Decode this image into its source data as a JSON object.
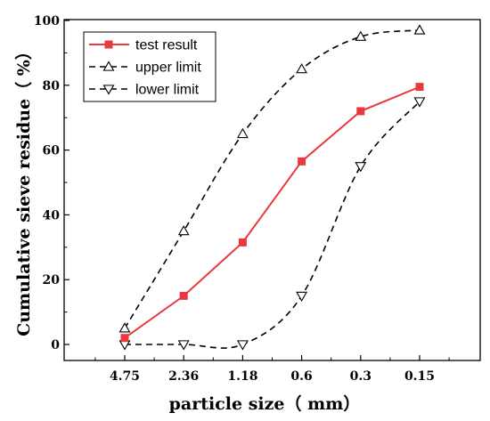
{
  "chart_data": {
    "type": "line",
    "xlabel": "particle size（ mm）",
    "ylabel": "Cumulative sieve residue（ %）",
    "categories": [
      "4.75",
      "2.36",
      "1.18",
      "0.6",
      "0.3",
      "0.15"
    ],
    "ylim": [
      0,
      100
    ],
    "yticks": [
      "0",
      "20",
      "40",
      "60",
      "80",
      "100"
    ],
    "legend_position": "top-left",
    "grid": false,
    "series": [
      {
        "name": "test result",
        "values": [
          2,
          15,
          31.5,
          56.5,
          72,
          79.5
        ],
        "color": "#e8393f",
        "line_style": "solid",
        "marker": "filled-square"
      },
      {
        "name": "upper limit",
        "values": [
          5,
          35,
          65,
          85,
          95,
          97
        ],
        "color": "#000000",
        "line_style": "dashed",
        "marker": "triangle-up"
      },
      {
        "name": "lower limit",
        "values": [
          0,
          0,
          0,
          15,
          55,
          75
        ],
        "color": "#000000",
        "line_style": "dashed",
        "marker": "triangle-down"
      }
    ]
  }
}
